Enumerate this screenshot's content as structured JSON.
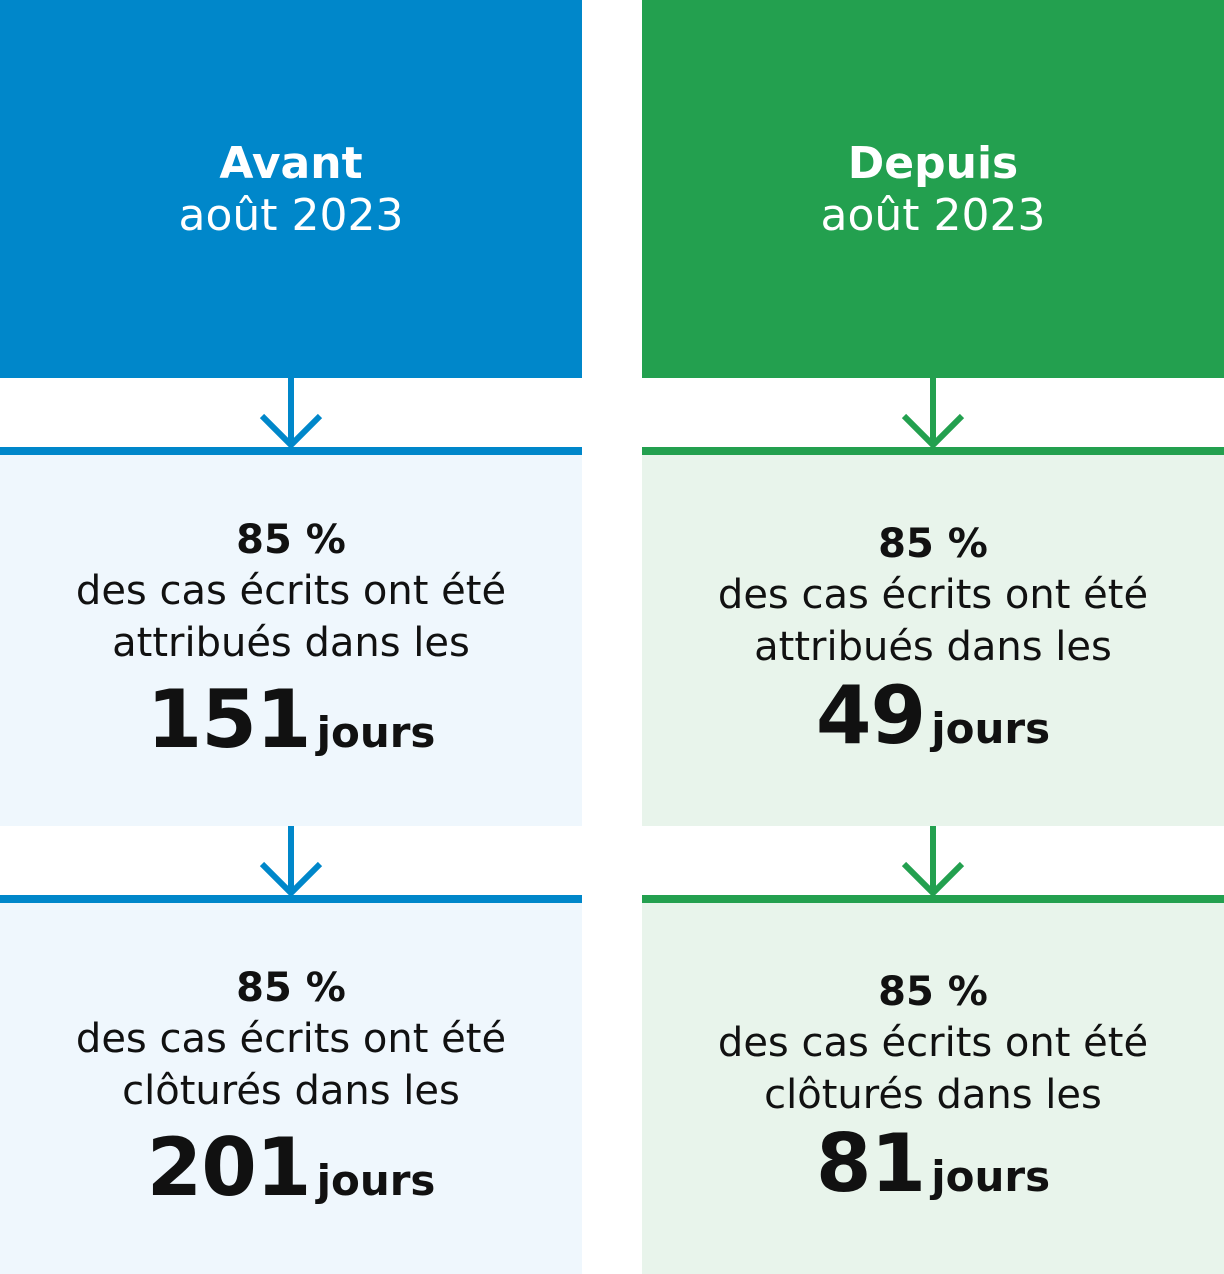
{
  "colors": {
    "before_accent": "#0087CA",
    "before_card_bg": "#EFF7FD",
    "after_accent": "#23A04F",
    "after_card_bg": "#E8F4EB",
    "text": "#111111",
    "header_text": "#FFFFFF"
  },
  "columns": [
    {
      "header": {
        "title": "Avant",
        "subtitle": "août 2023"
      },
      "cards": [
        {
          "percent": "85 %",
          "line1": "des cas écrits ont été",
          "line2": "attribués dans les",
          "value": "151",
          "unit": "jours"
        },
        {
          "percent": "85 %",
          "line1": "des cas écrits ont été",
          "line2": "clôturés dans les",
          "value": "201",
          "unit": "jours"
        }
      ]
    },
    {
      "header": {
        "title": "Depuis",
        "subtitle": "août 2023"
      },
      "cards": [
        {
          "percent": "85 %",
          "line1": "des cas écrits ont été",
          "line2": "attribués dans les",
          "value": "49",
          "unit": "jours"
        },
        {
          "percent": "85 %",
          "line1": "des cas écrits ont été",
          "line2": "clôturés dans les",
          "value": "81",
          "unit": "jours"
        }
      ]
    }
  ],
  "icons": {
    "flow_arrow": "arrow-down-icon"
  }
}
